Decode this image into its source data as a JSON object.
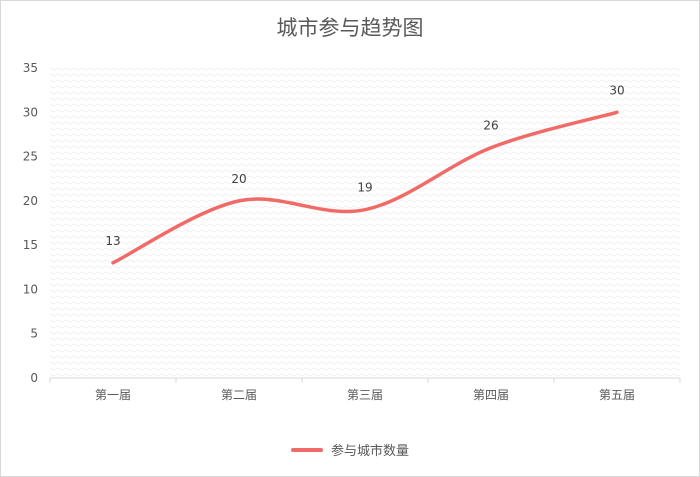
{
  "colors": {
    "series": "#f06b68",
    "axis": "#d9d9d9",
    "text": "#595959",
    "plot_pattern": "#ececec"
  },
  "chart_data": {
    "type": "line",
    "title": "城市参与趋势图",
    "categories": [
      "第一届",
      "第二届",
      "第三届",
      "第四届",
      "第五届"
    ],
    "series": [
      {
        "name": "参与城市数量",
        "values": [
          13,
          20,
          19,
          26,
          30
        ],
        "smooth": true
      }
    ],
    "xlabel": "",
    "ylabel": "",
    "ylim": [
      0,
      35
    ],
    "yticks": [
      0,
      5,
      10,
      15,
      20,
      25,
      30,
      35
    ],
    "grid": false,
    "data_labels": true,
    "legend": "bottom"
  }
}
